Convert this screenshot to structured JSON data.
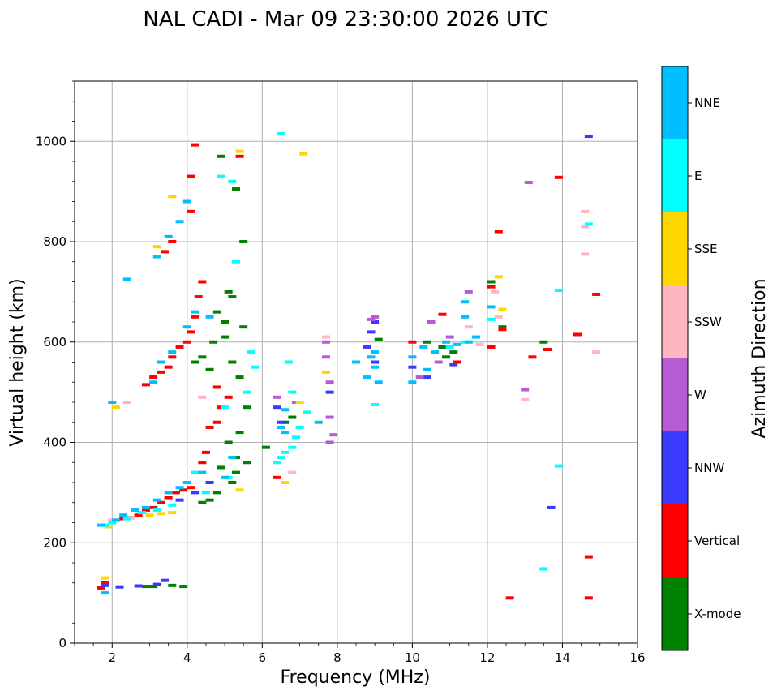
{
  "chart_data": {
    "type": "scatter",
    "title": "NAL CADI - Mar 09 23:30:00 2026 UTC",
    "xlabel": "Frequency (MHz)",
    "ylabel": "Virtual height (km)",
    "xlim": [
      1,
      16
    ],
    "ylim": [
      0,
      1120
    ],
    "x_ticks": [
      "2",
      "4",
      "6",
      "8",
      "10",
      "12",
      "14",
      "16"
    ],
    "y_ticks": [
      "0",
      "200",
      "400",
      "600",
      "800",
      "1000"
    ],
    "grid": true,
    "colorbar": {
      "label": "Azimuth Direction",
      "categories": [
        {
          "name": "X-mode",
          "color": "#008000"
        },
        {
          "name": "Vertical",
          "color": "#ff0000"
        },
        {
          "name": "NNW",
          "color": "#3a3aff"
        },
        {
          "name": "W",
          "color": "#b65ad6"
        },
        {
          "name": "SSW",
          "color": "#ffb6c1"
        },
        {
          "name": "SSE",
          "color": "#ffd700"
        },
        {
          "name": "E",
          "color": "#00ffff"
        },
        {
          "name": "NNE",
          "color": "#00bfff"
        }
      ]
    },
    "series": [
      {
        "name": "X-mode",
        "color": "#008000",
        "points": [
          [
            4.9,
            970
          ],
          [
            5.3,
            905
          ],
          [
            4.8,
            660
          ],
          [
            5.0,
            640
          ],
          [
            5.1,
            700
          ],
          [
            5.2,
            690
          ],
          [
            5.5,
            630
          ],
          [
            5.5,
            800
          ],
          [
            4.2,
            560
          ],
          [
            4.4,
            570
          ],
          [
            4.7,
            600
          ],
          [
            4.6,
            545
          ],
          [
            5.0,
            610
          ],
          [
            5.2,
            560
          ],
          [
            5.4,
            530
          ],
          [
            5.6,
            470
          ],
          [
            5.4,
            420
          ],
          [
            5.1,
            400
          ],
          [
            4.9,
            350
          ],
          [
            5.3,
            340
          ],
          [
            5.2,
            320
          ],
          [
            4.8,
            300
          ],
          [
            4.6,
            285
          ],
          [
            4.4,
            280
          ],
          [
            5.6,
            360
          ],
          [
            6.1,
            390
          ],
          [
            6.6,
            440
          ],
          [
            6.8,
            450
          ],
          [
            2.9,
            113
          ],
          [
            3.1,
            113
          ],
          [
            3.6,
            115
          ],
          [
            3.9,
            113
          ],
          [
            9.1,
            605
          ],
          [
            10.4,
            600
          ],
          [
            10.8,
            590
          ],
          [
            10.9,
            570
          ],
          [
            11.1,
            580
          ],
          [
            12.1,
            720
          ],
          [
            12.4,
            630
          ],
          [
            13.5,
            600
          ],
          [
            5.3,
            370
          ]
        ]
      },
      {
        "name": "Vertical",
        "color": "#ff0000",
        "points": [
          [
            4.2,
            993
          ],
          [
            5.4,
            970
          ],
          [
            4.1,
            930
          ],
          [
            4.1,
            860
          ],
          [
            3.6,
            800
          ],
          [
            3.4,
            780
          ],
          [
            4.4,
            720
          ],
          [
            4.3,
            690
          ],
          [
            4.2,
            650
          ],
          [
            4.1,
            620
          ],
          [
            4.0,
            600
          ],
          [
            3.8,
            590
          ],
          [
            3.6,
            570
          ],
          [
            3.5,
            550
          ],
          [
            3.3,
            540
          ],
          [
            3.1,
            530
          ],
          [
            2.9,
            515
          ],
          [
            4.8,
            510
          ],
          [
            4.9,
            470
          ],
          [
            5.1,
            490
          ],
          [
            4.6,
            430
          ],
          [
            4.8,
            440
          ],
          [
            4.5,
            380
          ],
          [
            4.4,
            360
          ],
          [
            4.1,
            310
          ],
          [
            3.9,
            305
          ],
          [
            3.7,
            300
          ],
          [
            3.5,
            290
          ],
          [
            3.3,
            280
          ],
          [
            3.1,
            270
          ],
          [
            2.9,
            265
          ],
          [
            2.7,
            255
          ],
          [
            2.5,
            250
          ],
          [
            2.3,
            248
          ],
          [
            2.1,
            245
          ],
          [
            1.7,
            110
          ],
          [
            1.8,
            120
          ],
          [
            6.4,
            330
          ],
          [
            10.0,
            600
          ],
          [
            10.8,
            655
          ],
          [
            11.2,
            560
          ],
          [
            12.1,
            710
          ],
          [
            12.3,
            820
          ],
          [
            12.4,
            625
          ],
          [
            12.1,
            590
          ],
          [
            13.2,
            570
          ],
          [
            13.6,
            585
          ],
          [
            13.9,
            928
          ],
          [
            14.4,
            615
          ],
          [
            14.9,
            695
          ],
          [
            14.7,
            172
          ],
          [
            14.7,
            90
          ],
          [
            12.6,
            90
          ]
        ]
      },
      {
        "name": "NNW",
        "color": "#3a3aff",
        "points": [
          [
            14.7,
            1010
          ],
          [
            13.7,
            270
          ],
          [
            8.9,
            620
          ],
          [
            8.8,
            590
          ],
          [
            9.0,
            560
          ],
          [
            7.8,
            500
          ],
          [
            6.4,
            470
          ],
          [
            6.5,
            440
          ],
          [
            3.4,
            125
          ],
          [
            3.2,
            117
          ],
          [
            1.8,
            115
          ],
          [
            2.2,
            112
          ],
          [
            2.7,
            114
          ],
          [
            3.8,
            285
          ],
          [
            4.2,
            300
          ],
          [
            4.6,
            320
          ],
          [
            10.0,
            550
          ],
          [
            10.4,
            530
          ],
          [
            11.1,
            555
          ],
          [
            9.0,
            640
          ]
        ]
      },
      {
        "name": "W",
        "color": "#b65ad6",
        "points": [
          [
            13.1,
            918
          ],
          [
            13.0,
            505
          ],
          [
            9.0,
            650
          ],
          [
            8.9,
            645
          ],
          [
            7.8,
            400
          ],
          [
            7.9,
            415
          ],
          [
            7.8,
            450
          ],
          [
            7.8,
            520
          ],
          [
            7.7,
            570
          ],
          [
            7.7,
            600
          ],
          [
            6.9,
            480
          ],
          [
            6.4,
            490
          ],
          [
            10.5,
            640
          ],
          [
            10.7,
            560
          ],
          [
            10.2,
            530
          ],
          [
            11.0,
            610
          ],
          [
            11.5,
            700
          ]
        ]
      },
      {
        "name": "SSW",
        "color": "#ffb6c1",
        "points": [
          [
            14.6,
            860
          ],
          [
            14.6,
            775
          ],
          [
            14.6,
            830
          ],
          [
            14.9,
            580
          ],
          [
            13.0,
            485
          ],
          [
            6.8,
            340
          ],
          [
            7.7,
            610
          ],
          [
            2.4,
            480
          ],
          [
            4.4,
            490
          ],
          [
            2.5,
            250
          ],
          [
            2.0,
            245
          ],
          [
            11.8,
            595
          ],
          [
            12.2,
            700
          ],
          [
            12.3,
            650
          ],
          [
            11.5,
            630
          ]
        ]
      },
      {
        "name": "SSE",
        "color": "#ffd700",
        "points": [
          [
            5.4,
            980
          ],
          [
            7.1,
            975
          ],
          [
            3.6,
            890
          ],
          [
            3.2,
            790
          ],
          [
            6.6,
            320
          ],
          [
            5.4,
            305
          ],
          [
            2.1,
            470
          ],
          [
            3.3,
            258
          ],
          [
            3.0,
            255
          ],
          [
            3.6,
            260
          ],
          [
            1.9,
            232
          ],
          [
            7.7,
            540
          ],
          [
            7.0,
            480
          ],
          [
            12.3,
            730
          ],
          [
            12.4,
            665
          ],
          [
            1.8,
            130
          ]
        ]
      },
      {
        "name": "E",
        "color": "#00ffff",
        "points": [
          [
            6.5,
            1015
          ],
          [
            14.7,
            835
          ],
          [
            13.9,
            703
          ],
          [
            13.9,
            353
          ],
          [
            13.5,
            148
          ],
          [
            4.9,
            930
          ],
          [
            5.2,
            920
          ],
          [
            5.3,
            760
          ],
          [
            5.7,
            580
          ],
          [
            5.8,
            550
          ],
          [
            5.6,
            500
          ],
          [
            5.0,
            470
          ],
          [
            6.6,
            380
          ],
          [
            6.8,
            390
          ],
          [
            6.9,
            410
          ],
          [
            7.0,
            430
          ],
          [
            6.5,
            370
          ],
          [
            6.4,
            360
          ],
          [
            6.7,
            560
          ],
          [
            6.8,
            500
          ],
          [
            7.2,
            460
          ],
          [
            2.0,
            240
          ],
          [
            2.4,
            248
          ],
          [
            2.8,
            260
          ],
          [
            3.2,
            265
          ],
          [
            3.6,
            275
          ],
          [
            4.2,
            340
          ],
          [
            4.5,
            300
          ],
          [
            5.1,
            330
          ],
          [
            1.8,
            235
          ],
          [
            12.1,
            645
          ],
          [
            11.0,
            590
          ],
          [
            11.4,
            600
          ],
          [
            9.0,
            475
          ]
        ]
      },
      {
        "name": "NNE",
        "color": "#00bfff",
        "points": [
          [
            4.0,
            880
          ],
          [
            3.8,
            840
          ],
          [
            3.5,
            810
          ],
          [
            3.2,
            770
          ],
          [
            2.4,
            725
          ],
          [
            4.2,
            660
          ],
          [
            4.0,
            630
          ],
          [
            3.6,
            580
          ],
          [
            3.3,
            560
          ],
          [
            3.1,
            520
          ],
          [
            2.0,
            480
          ],
          [
            4.4,
            340
          ],
          [
            4.0,
            320
          ],
          [
            3.8,
            310
          ],
          [
            3.5,
            300
          ],
          [
            3.2,
            285
          ],
          [
            2.9,
            270
          ],
          [
            2.6,
            265
          ],
          [
            2.3,
            255
          ],
          [
            2.1,
            245
          ],
          [
            1.7,
            235
          ],
          [
            5.0,
            330
          ],
          [
            5.2,
            370
          ],
          [
            6.6,
            420
          ],
          [
            6.5,
            430
          ],
          [
            8.9,
            570
          ],
          [
            9.0,
            550
          ],
          [
            9.0,
            580
          ],
          [
            8.8,
            530
          ],
          [
            9.1,
            520
          ],
          [
            10.0,
            570
          ],
          [
            10.3,
            590
          ],
          [
            10.6,
            580
          ],
          [
            10.9,
            600
          ],
          [
            11.2,
            595
          ],
          [
            11.5,
            600
          ],
          [
            11.7,
            610
          ],
          [
            11.4,
            650
          ],
          [
            11.4,
            680
          ],
          [
            12.1,
            670
          ],
          [
            7.5,
            440
          ],
          [
            1.8,
            100
          ],
          [
            4.6,
            650
          ],
          [
            6.6,
            465
          ],
          [
            10.4,
            545
          ],
          [
            10.0,
            520
          ],
          [
            8.5,
            560
          ]
        ]
      }
    ]
  }
}
